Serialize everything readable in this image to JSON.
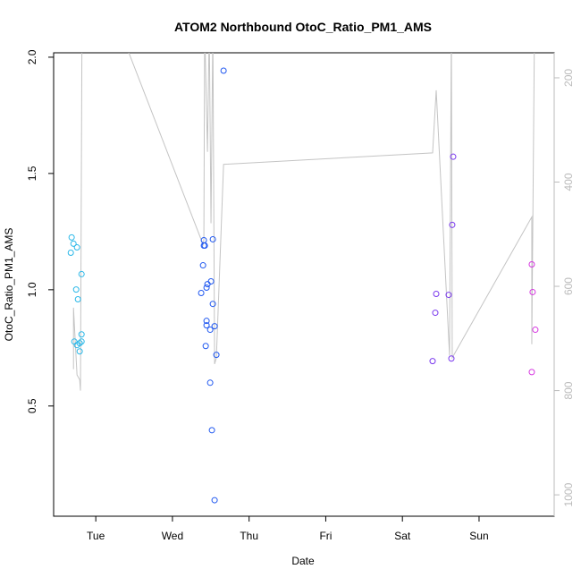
{
  "chart_data": {
    "type": "scatter",
    "title": "ATOM2 Northbound OtoC_Ratio_PM1_AMS",
    "xlabel": "Date",
    "ylabel": "OtoC_Ratio_PM1_AMS",
    "xlim": [
      0.45,
      6.98
    ],
    "xticks": [
      {
        "value": 1,
        "label": "Tue"
      },
      {
        "value": 2,
        "label": "Wed"
      },
      {
        "value": 3,
        "label": "Thu"
      },
      {
        "value": 4,
        "label": "Fri"
      },
      {
        "value": 5,
        "label": "Sat"
      },
      {
        "value": 6,
        "label": "Sun"
      }
    ],
    "ylim": [
      0.026,
      2.019
    ],
    "yticks": [
      {
        "value": 0.5,
        "label": "0.5"
      },
      {
        "value": 1,
        "label": "1.0"
      },
      {
        "value": 1.5,
        "label": "1.5"
      },
      {
        "value": 2,
        "label": "2.0"
      }
    ],
    "y2lim": [
      1041,
      152
    ],
    "y2ticks": [
      200,
      400,
      600,
      800,
      1000
    ],
    "y2color": "#bbbbbb",
    "series": [
      {
        "type": "scatter",
        "color": "#2bb8e8",
        "x": [
          0.685,
          0.709,
          0.674,
          0.755,
          0.814,
          0.744,
          0.767,
          0.72,
          0.755,
          0.814,
          0.79,
          0.814,
          0.79
        ],
        "values": [
          1.225,
          1.198,
          1.159,
          1.182,
          1.067,
          1.001,
          0.959,
          0.777,
          0.762,
          0.808,
          0.77,
          0.777,
          0.735
        ]
      },
      {
        "type": "scatter",
        "color": "#2058f0",
        "x": [
          2.41,
          2.527,
          2.41,
          2.422,
          2.399,
          2.375,
          2.457,
          2.445,
          2.503,
          2.527,
          2.445,
          2.445,
          2.55,
          2.492,
          2.434,
          2.573,
          2.492,
          2.515,
          2.55,
          2.667
        ],
        "values": [
          1.213,
          1.217,
          1.19,
          1.19,
          1.105,
          0.986,
          1.024,
          1.009,
          1.036,
          0.939,
          0.866,
          0.847,
          0.843,
          0.828,
          0.758,
          0.72,
          0.6,
          0.396,
          0.095,
          1.942
        ]
      },
      {
        "type": "scatter",
        "color": "#7a38ee",
        "x": [
          5.662,
          5.65,
          5.441,
          5.604,
          5.429,
          5.394,
          5.639
        ],
        "values": [
          1.572,
          1.279,
          0.982,
          0.978,
          0.901,
          0.693,
          0.704
        ]
      },
      {
        "type": "scatter",
        "color": "#d636e0",
        "x": [
          6.688,
          6.699,
          6.734,
          6.688
        ],
        "values": [
          1.109,
          0.99,
          0.828,
          0.646
        ]
      },
      {
        "type": "line",
        "axis": "y2",
        "color": "#c4c4c4",
        "x": [
          0.709,
          0.709,
          0.755,
          0.79,
          0.8,
          0.82,
          1.3,
          2.4,
          2.41,
          2.42,
          2.457,
          2.48,
          2.503,
          2.527,
          2.55,
          2.573,
          2.667,
          5.394,
          5.441,
          5.615,
          5.639,
          5.65,
          6.688,
          6.688,
          6.723
        ],
        "values": [
          759,
          641,
          770,
          779,
          800,
          102,
          102,
          520,
          510,
          102,
          342,
          102,
          479,
          102,
          749,
          737,
          366,
          344,
          224,
          733,
          102,
          737,
          467,
          711,
          102
        ]
      }
    ]
  }
}
